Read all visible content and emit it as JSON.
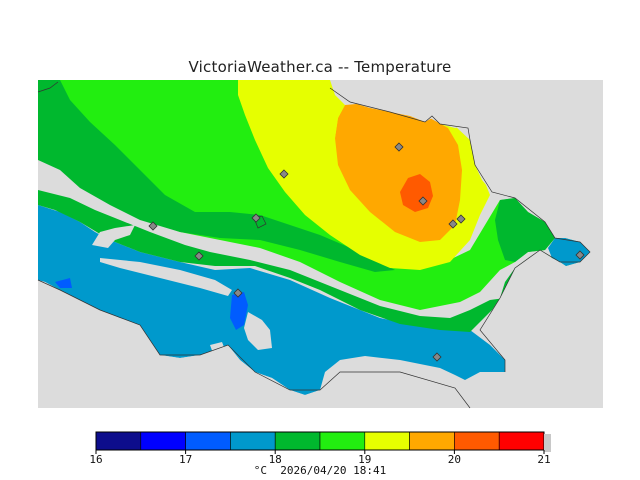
{
  "title": "VictoriaWeather.ca -- Temperature",
  "legend": {
    "unit": "°C",
    "timestamp": "2026/04/20 18:41",
    "ticks": [
      "16",
      "17",
      "18",
      "19",
      "20",
      "21"
    ],
    "bins": [
      {
        "from": 16.0,
        "to": 16.5,
        "color": "#0d0d8c"
      },
      {
        "from": 16.5,
        "to": 17.0,
        "color": "#0000ff"
      },
      {
        "from": 17.0,
        "to": 17.5,
        "color": "#005cff"
      },
      {
        "from": 17.5,
        "to": 18.0,
        "color": "#0099cc"
      },
      {
        "from": 18.0,
        "to": 18.5,
        "color": "#00b82e"
      },
      {
        "from": 18.5,
        "to": 19.0,
        "color": "#22ee10"
      },
      {
        "from": 19.0,
        "to": 19.5,
        "color": "#e6ff00"
      },
      {
        "from": 19.5,
        "to": 20.0,
        "color": "#ffa800"
      },
      {
        "from": 20.0,
        "to": 20.5,
        "color": "#ff5a00"
      },
      {
        "from": 20.5,
        "to": 21.0,
        "color": "#ff0000"
      }
    ]
  },
  "colors": {
    "land_background": "#dcdcdc",
    "station_marker": "#888888"
  },
  "map": {
    "stations_count": 11
  }
}
